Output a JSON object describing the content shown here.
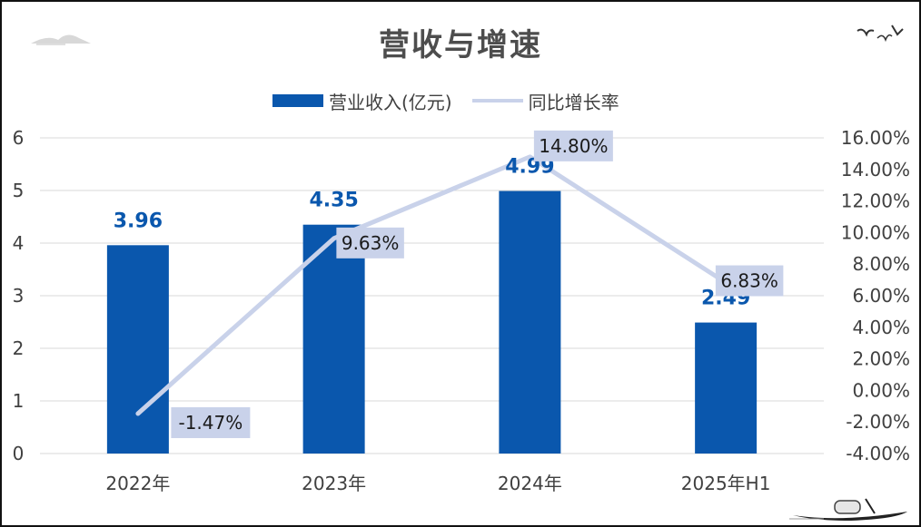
{
  "title": "营收与增速",
  "legend": {
    "bar_label": "营业收入(亿元)",
    "line_label": "同比增长率"
  },
  "colors": {
    "bar": "#0a57ad",
    "line": "#c9d2ea",
    "label_box": "#c9d2ea",
    "grid": "#d9d9d9",
    "axis_text": "#404040",
    "title": "#4d4d4d"
  },
  "chart_data": {
    "type": "bar",
    "categories": [
      "2022年",
      "2023年",
      "2024年",
      "2025年H1"
    ],
    "series": [
      {
        "name": "营业收入(亿元)",
        "type": "bar",
        "axis": "left",
        "values": [
          3.96,
          4.35,
          4.99,
          2.49
        ],
        "labels": [
          "3.96",
          "4.35",
          "4.99",
          "2.49"
        ]
      },
      {
        "name": "同比增长率",
        "type": "line",
        "axis": "right",
        "values": [
          -1.47,
          9.63,
          14.8,
          6.83
        ],
        "labels": [
          "-1.47%",
          "9.63%",
          "14.80%",
          "6.83%"
        ]
      }
    ],
    "y_left": {
      "ylim": [
        0,
        6
      ],
      "ticks": [
        "0",
        "1",
        "2",
        "3",
        "4",
        "5",
        "6"
      ]
    },
    "y_right": {
      "ylim": [
        -4,
        16
      ],
      "ticks": [
        "-4.00%",
        "-2.00%",
        "0.00%",
        "2.00%",
        "4.00%",
        "6.00%",
        "8.00%",
        "10.00%",
        "12.00%",
        "14.00%",
        "16.00%"
      ]
    },
    "grid": true,
    "legend_position": "top"
  }
}
